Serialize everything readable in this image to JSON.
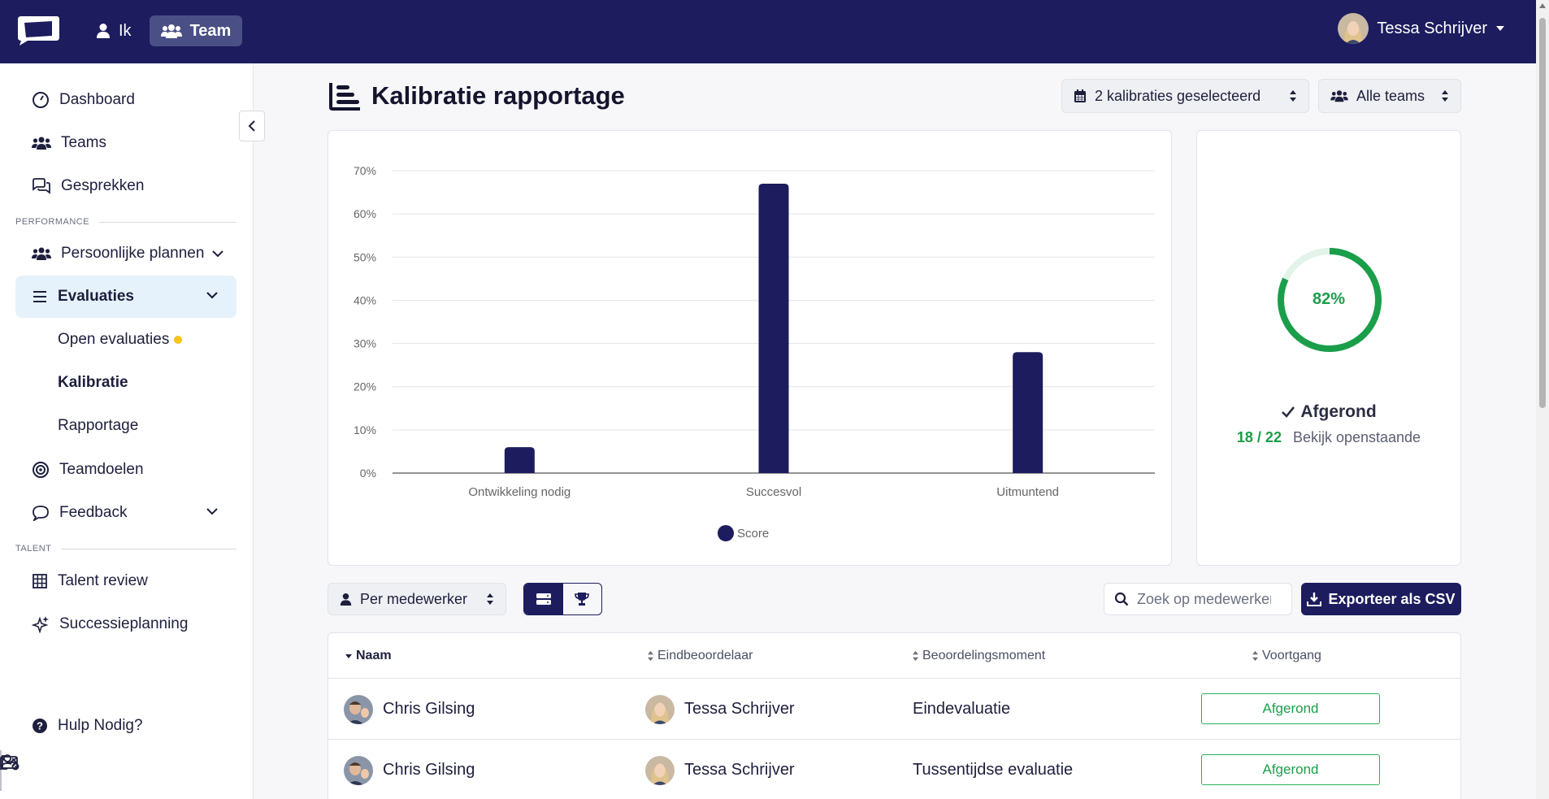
{
  "topbar": {
    "nav": [
      {
        "label": "Ik",
        "icon": "user-icon",
        "active": false
      },
      {
        "label": "Team",
        "icon": "users-icon",
        "active": true
      }
    ],
    "user_name": "Tessa Schrijver"
  },
  "sidebar": {
    "items": [
      {
        "label": "Dashboard",
        "icon": "gauge-icon"
      },
      {
        "label": "Teams",
        "icon": "users-icon"
      },
      {
        "label": "Gesprekken",
        "icon": "chat-bubbles-icon"
      }
    ],
    "performance_label": "PERFORMANCE",
    "performance_items": [
      {
        "label": "Persoonlijke plannen",
        "icon": "users-icon"
      },
      {
        "label": "Evaluaties",
        "icon": "list-icon"
      }
    ],
    "evaluatie_sub": [
      "Open evaluaties",
      "Kalibratie",
      "Rapportage"
    ],
    "more_items": [
      {
        "label": "Teamdoelen",
        "icon": "target-icon"
      },
      {
        "label": "Feedback",
        "icon": "chat-icon"
      }
    ],
    "talent_label": "TALENT",
    "talent_items": [
      {
        "label": "Talent review",
        "icon": "grid-icon"
      },
      {
        "label": "Successieplanning",
        "icon": "sparkles-icon"
      }
    ],
    "help": "Hulp Nodig?"
  },
  "page": {
    "title": "Kalibratie rapportage",
    "calibration_filter": "2 kalibraties geselecteerd",
    "team_filter": "Alle teams"
  },
  "chart_data": {
    "type": "bar",
    "categories": [
      "Ontwikkeling nodig",
      "Succesvol",
      "Uitmuntend"
    ],
    "series": [
      {
        "name": "Score",
        "values": [
          6,
          67,
          28
        ]
      }
    ],
    "y_ticks": [
      "0%",
      "10%",
      "20%",
      "30%",
      "40%",
      "50%",
      "60%",
      "70%"
    ],
    "ylim": [
      0,
      70
    ],
    "y_unit": "%",
    "grid": true,
    "legend": "bottom",
    "bar_color": "#1c1c5e"
  },
  "progress": {
    "percent_label": "82%",
    "fraction": 0.82,
    "status": "Afgerond",
    "count": "18 / 22",
    "link": "Bekijk openstaande",
    "color": "#1a9e4a"
  },
  "toolbar": {
    "group_by": "Per medewerker",
    "search_placeholder": "Zoek op medewerker",
    "export_label": "Exporteer als CSV"
  },
  "table": {
    "columns": [
      "Naam",
      "Eindbeoordelaar",
      "Beoordelingsmoment",
      "Voortgang"
    ],
    "rows": [
      {
        "naam": "Chris Gilsing",
        "eindbeoordelaar": "Tessa Schrijver",
        "moment": "Eindevaluatie",
        "voortgang": "Afgerond"
      },
      {
        "naam": "Chris Gilsing",
        "eindbeoordelaar": "Tessa Schrijver",
        "moment": "Tussentijdse evaluatie",
        "voortgang": "Afgerond"
      }
    ]
  }
}
